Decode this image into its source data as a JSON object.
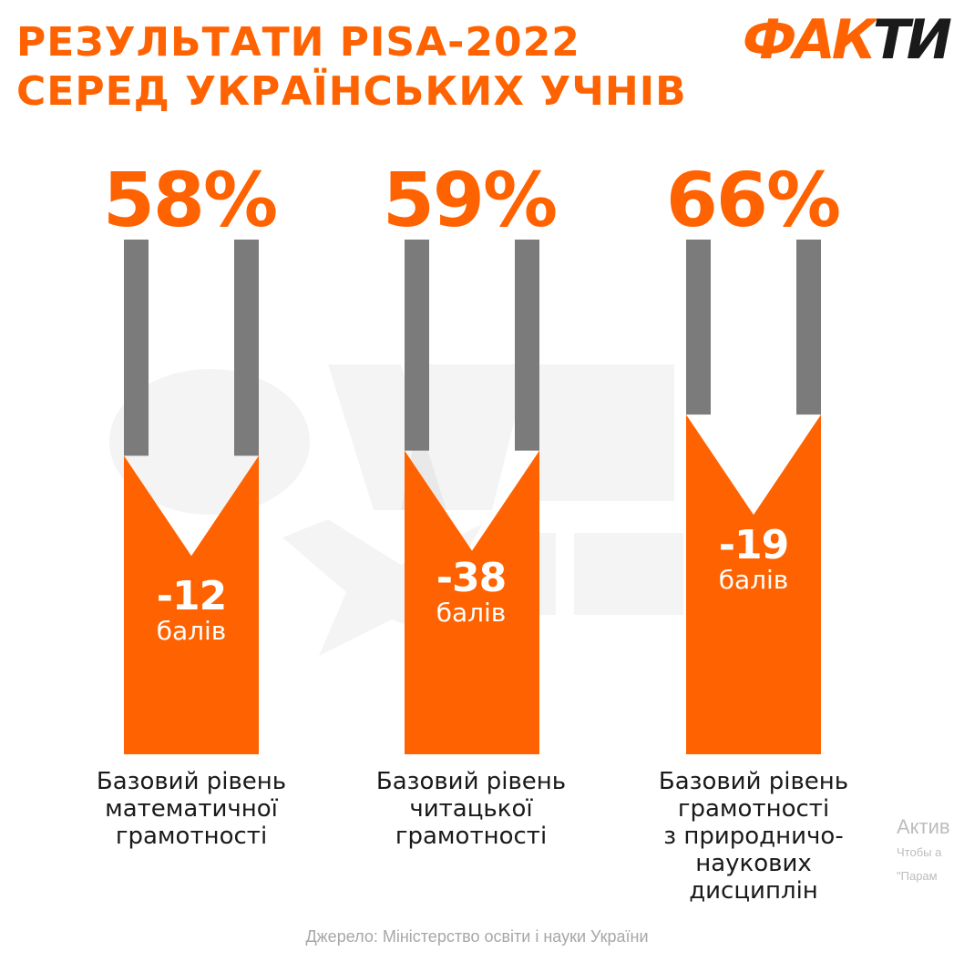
{
  "header": {
    "title_line1": "РЕЗУЛЬТАТИ PISA-2022",
    "title_line2": "СЕРЕД УКРАЇНСЬКИХ УЧНІВ",
    "logo_part1": "ФАК",
    "logo_part2": "ТИ"
  },
  "colors": {
    "accent": "#ff6200",
    "gray_bar": "#7b7b7b",
    "text": "#1a1a1a",
    "source": "#a7a7a7"
  },
  "chart_data": {
    "type": "bar",
    "title": "РЕЗУЛЬТАТИ PISA-2022 СЕРЕД УКРАЇНСЬКИХ УЧНІВ",
    "categories": [
      "Базовий рівень математичної грамотності",
      "Базовий рівень читацької грамотності",
      "Базовий рівень грамотності з природничо-наукових дисциплін"
    ],
    "series": [
      {
        "values": [
          58,
          59,
          66
        ]
      }
    ],
    "change_points": [
      -12,
      -38,
      -19
    ],
    "ylim": [
      0,
      100
    ]
  },
  "bars": [
    {
      "percent": "58%",
      "delta": "-12",
      "unit": "балів",
      "cat_lines": [
        "Базовий рівень",
        "математичної",
        "грамотності"
      ]
    },
    {
      "percent": "59%",
      "delta": "-38",
      "unit": "балів",
      "cat_lines": [
        "Базовий рівень",
        "читацької",
        "грамотності"
      ]
    },
    {
      "percent": "66%",
      "delta": "-19",
      "unit": "балів",
      "cat_lines": [
        "Базовий рівень",
        "грамотності",
        "з природничо-наукових",
        "дисциплін"
      ]
    }
  ],
  "footer": {
    "source": "Джерело: Міністерство освіти і науки України"
  },
  "overlay": {
    "line1": "Актив",
    "line2": "Чтобы а",
    "line3": "\"Парам"
  }
}
